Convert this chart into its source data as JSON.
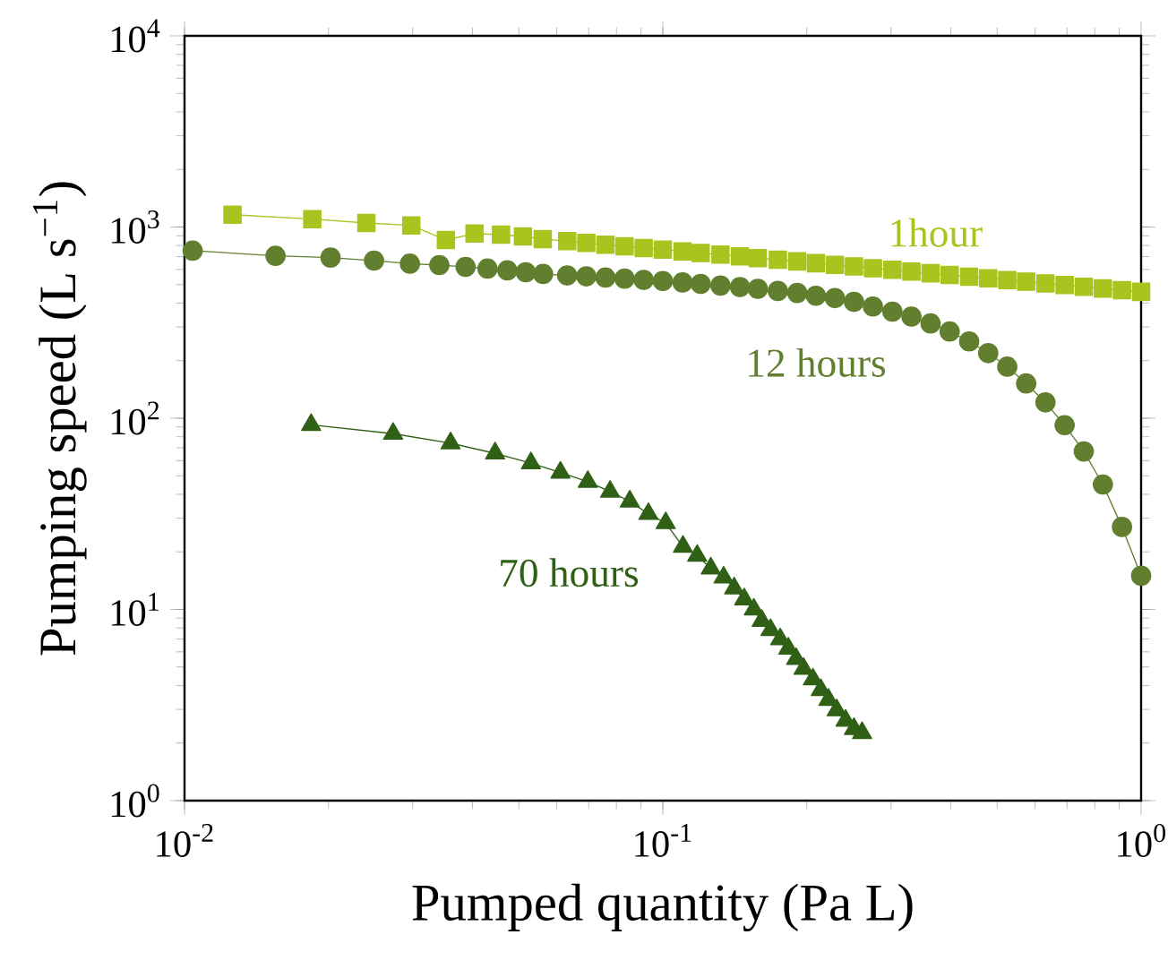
{
  "chart_data": {
    "type": "line",
    "xlabel": "Pumped quantity (Pa L)",
    "ylabel": "Pumping speed (L s$^{−1}$)",
    "log": "xy",
    "line_style": "solid",
    "xlim": [
      0.01,
      1
    ],
    "ylim": [
      1,
      10000
    ],
    "xticks": [
      {
        "value": 0.01,
        "label": "10$^{-2}$"
      },
      {
        "value": 0.1,
        "label": "10$^{-1}$"
      },
      {
        "value": 1,
        "label": "10$^{0}$"
      }
    ],
    "yticks": [
      {
        "value": 1,
        "label": "10$^{0}$"
      },
      {
        "value": 10,
        "label": "10$^{1}$"
      },
      {
        "value": 100,
        "label": "10$^{2}$"
      },
      {
        "value": 1000,
        "label": "10$^{3}$"
      },
      {
        "value": 10000,
        "label": "10$^{4}$"
      }
    ],
    "series": [
      {
        "name": "1hour",
        "color": "#a8c41e",
        "marker": "square",
        "x": [
          0.0126,
          0.0185,
          0.024,
          0.0298,
          0.0352,
          0.0404,
          0.0459,
          0.051,
          0.0561,
          0.0631,
          0.0692,
          0.0759,
          0.0832,
          0.0912,
          0.1,
          0.11,
          0.12,
          0.132,
          0.145,
          0.158,
          0.174,
          0.191,
          0.209,
          0.229,
          0.251,
          0.275,
          0.302,
          0.331,
          0.363,
          0.398,
          0.437,
          0.479,
          0.525,
          0.575,
          0.631,
          0.692,
          0.759,
          0.832,
          0.912,
          1.0
        ],
        "values": [
          1160,
          1100,
          1050,
          1020,
          855,
          924,
          912,
          893,
          865,
          843,
          826,
          809,
          793,
          777,
          762,
          746,
          731,
          717,
          702,
          688,
          674,
          661,
          647,
          634,
          622,
          609,
          597,
          585,
          573,
          562,
          550,
          539,
          528,
          518,
          507,
          497,
          487,
          477,
          468,
          458
        ]
      },
      {
        "name": "12 hours",
        "color": "#617f2e",
        "marker": "circle",
        "x": [
          0.0104,
          0.0155,
          0.0202,
          0.0249,
          0.0296,
          0.0341,
          0.0387,
          0.043,
          0.0473,
          0.0517,
          0.0562,
          0.0631,
          0.0692,
          0.0759,
          0.0832,
          0.0912,
          0.1,
          0.11,
          0.12,
          0.132,
          0.145,
          0.158,
          0.174,
          0.191,
          0.209,
          0.229,
          0.251,
          0.275,
          0.302,
          0.331,
          0.363,
          0.398,
          0.437,
          0.479,
          0.525,
          0.575,
          0.631,
          0.692,
          0.759,
          0.832,
          0.912,
          1.0
        ],
        "values": [
          752,
          707,
          692,
          667,
          643,
          632,
          619,
          606,
          593,
          580,
          568,
          558,
          552,
          544,
          537,
          529,
          522,
          513,
          504,
          494,
          485,
          475,
          463,
          452,
          437,
          425,
          406,
          384,
          361,
          340,
          313,
          284,
          252,
          219,
          186,
          152,
          121,
          92,
          67,
          45,
          27,
          15
        ]
      },
      {
        "name": "70 hours",
        "color": "#2f6016",
        "marker": "triangle",
        "x": [
          0.0184,
          0.0273,
          0.036,
          0.0446,
          0.053,
          0.0611,
          0.0697,
          0.0776,
          0.0853,
          0.0933,
          0.1014,
          0.1102,
          0.118,
          0.126,
          0.134,
          0.141,
          0.148,
          0.155,
          0.161,
          0.168,
          0.176,
          0.183,
          0.19,
          0.197,
          0.206,
          0.214,
          0.222,
          0.231,
          0.241,
          0.251,
          0.261
        ],
        "values": [
          92.3,
          83,
          74,
          65.5,
          58.2,
          52,
          46.5,
          41.3,
          36.7,
          31.6,
          28.3,
          21.3,
          19.1,
          16.4,
          14.7,
          12.9,
          11.3,
          10.0,
          8.72,
          7.81,
          6.98,
          6.24,
          5.51,
          4.89,
          4.31,
          3.79,
          3.37,
          2.97,
          2.62,
          2.37,
          2.26
        ]
      }
    ]
  }
}
